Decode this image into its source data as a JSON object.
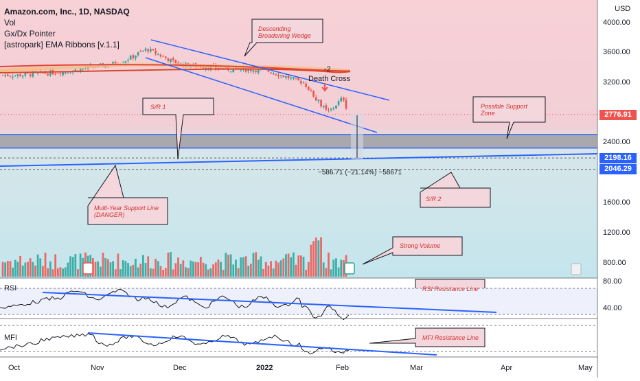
{
  "header": {
    "symbol_line": "Amazon.com, Inc., 1D, NASDAQ",
    "indicators": [
      "Vol",
      "Gx/Dx Pointer",
      "[astropark] EMA Ribbons [v.1.1]"
    ]
  },
  "axis": {
    "currency": "USD",
    "price_ticks": [
      "4000.00",
      "3600.00",
      "3200.00",
      "2400.00",
      "1600.00",
      "1200.00",
      "800.00"
    ],
    "rsi_ticks": [
      "80.00",
      "40.00"
    ],
    "x_ticks": [
      "Oct",
      "Nov",
      "Dec",
      "2022",
      "Feb",
      "Mar",
      "Apr",
      "May"
    ]
  },
  "price_tags": [
    {
      "value": "2776.91",
      "color": "#ef5350"
    },
    {
      "value": "2198.16",
      "color": "#2962ff"
    },
    {
      "value": "2046.29",
      "color": "#2962ff"
    }
  ],
  "annotations": {
    "wedge": "Descending Broadening Wedge",
    "support_zone": "Possible Support Zone",
    "sr1": "S/R 1",
    "sr2": "S/R 2",
    "multi_year": "Multi-Year Support Line (DANGER)",
    "strong_volume": "Strong Volume",
    "rsi_resistance": "RSI Resistance Line",
    "mfi_resistance": "MFI Resistance Line",
    "death_cross": "Death Cross",
    "death_cross_count": "-2",
    "measure": "−586.71 (−21.14%) −58671"
  },
  "panels": {
    "rsi": "RSI",
    "mfi": "MFI"
  },
  "colors": {
    "up": "#26a69a",
    "down": "#ef5350",
    "line": "#2962ff",
    "annotation": "#d3302f"
  },
  "chart_data": {
    "type": "candlestick",
    "title": "Amazon.com, Inc., 1D, NASDAQ",
    "x_range": [
      "2021-09-24",
      "2022-05-10"
    ],
    "price_range": [
      700,
      4150
    ],
    "approx_close_path": [
      {
        "x": "2021-10-01",
        "y": 3300
      },
      {
        "x": "2021-10-20",
        "y": 3350
      },
      {
        "x": "2021-11-10",
        "y": 3480
      },
      {
        "x": "2021-11-19",
        "y": 3650
      },
      {
        "x": "2021-12-01",
        "y": 3450
      },
      {
        "x": "2021-12-20",
        "y": 3380
      },
      {
        "x": "2022-01-03",
        "y": 3370
      },
      {
        "x": "2022-01-18",
        "y": 3200
      },
      {
        "x": "2022-01-27",
        "y": 2800
      },
      {
        "x": "2022-02-02",
        "y": 3000
      },
      {
        "x": "2022-02-04",
        "y": 2776.91
      }
    ],
    "last_price": 2776.91,
    "levels": [
      2198.16,
      2046.29
    ],
    "support_zone": [
      2330,
      2510
    ],
    "measure_change": -586.71,
    "measure_change_pct": -21.14,
    "rsi_range": [
      20,
      90
    ],
    "mfi_ylim": [
      0,
      100
    ]
  }
}
